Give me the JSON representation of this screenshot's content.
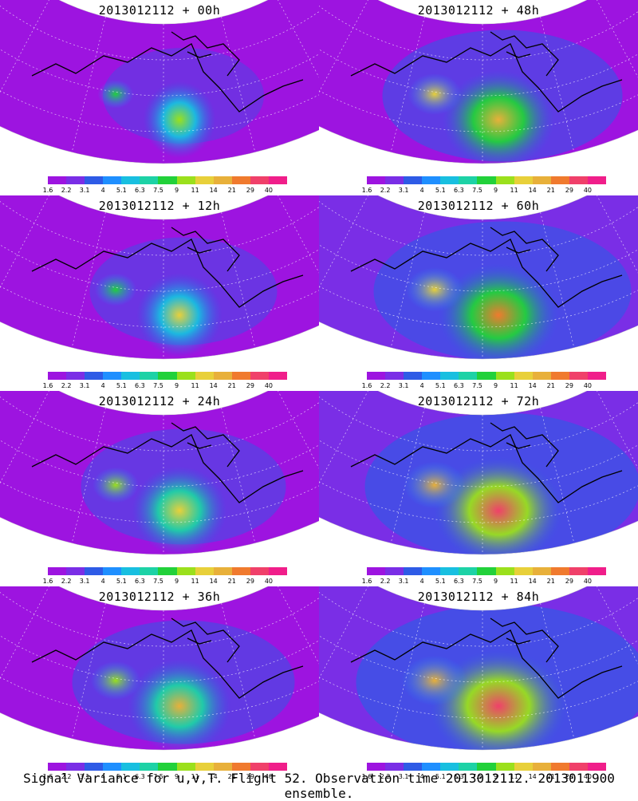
{
  "figure": {
    "caption": "Signal Variance for u,v,T. Flight 52. Observation time 2013012112. 2013011900 ensemble."
  },
  "colorbar": {
    "labels": [
      "1.6",
      "2.2",
      "3.1",
      "4",
      "5.1",
      "6.3",
      "7.5",
      "9",
      "11",
      "14",
      "21",
      "29",
      "40"
    ],
    "colors": [
      "#9d14e0",
      "#7a2ee6",
      "#2e5be6",
      "#1f8fff",
      "#18bfe0",
      "#1dd2a6",
      "#22d13a",
      "#9be01c",
      "#e8d03a",
      "#e8b03a",
      "#f07a2e",
      "#f0406a",
      "#f01e8a"
    ]
  },
  "panels": [
    {
      "title": "2013012112 + 00h",
      "intensity": 0.1
    },
    {
      "title": "2013012112 + 48h",
      "intensity": 0.55
    },
    {
      "title": "2013012112 + 12h",
      "intensity": 0.25
    },
    {
      "title": "2013012112 + 60h",
      "intensity": 0.65
    },
    {
      "title": "2013012112 + 24h",
      "intensity": 0.35
    },
    {
      "title": "2013012112 + 72h",
      "intensity": 0.75
    },
    {
      "title": "2013012112 + 36h",
      "intensity": 0.45
    },
    {
      "title": "2013012112 + 84h",
      "intensity": 0.85
    }
  ]
}
